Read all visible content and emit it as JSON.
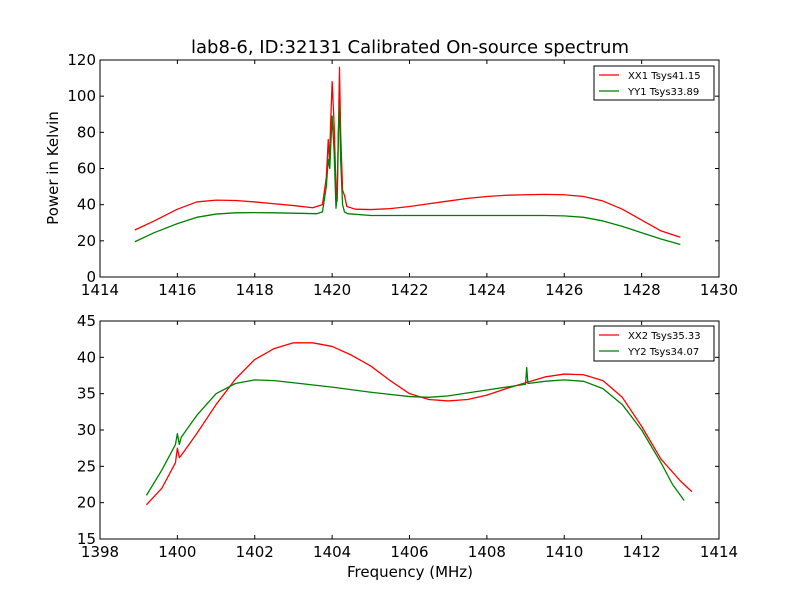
{
  "figure": {
    "title": "lab8-6, ID:32131 Calibrated On-source spectrum",
    "ylabel": "Power in Kelvin",
    "xlabel": "Frequency (MHz)"
  },
  "chart_data": [
    {
      "type": "line",
      "title": "lab8-6, ID:32131 Calibrated On-source spectrum",
      "xlabel": "",
      "ylabel": "Power in Kelvin",
      "xlim": [
        1414,
        1430
      ],
      "ylim": [
        0,
        120
      ],
      "xticks": [
        1414,
        1416,
        1418,
        1420,
        1422,
        1424,
        1426,
        1428,
        1430
      ],
      "yticks": [
        0,
        20,
        40,
        60,
        80,
        100,
        120
      ],
      "legend_position": "top-right",
      "grid": false,
      "series": [
        {
          "name": "XX1 Tsys41.15",
          "color": "#ff0000",
          "points": [
            [
              1414.9,
              26
            ],
            [
              1415.4,
              31
            ],
            [
              1416.0,
              37.5
            ],
            [
              1416.5,
              41.5
            ],
            [
              1417.0,
              42.5
            ],
            [
              1417.5,
              42.3
            ],
            [
              1418.0,
              41.5
            ],
            [
              1418.5,
              40.5
            ],
            [
              1419.0,
              39.5
            ],
            [
              1419.5,
              38.3
            ],
            [
              1419.75,
              40
            ],
            [
              1419.85,
              55
            ],
            [
              1419.9,
              76
            ],
            [
              1419.93,
              64
            ],
            [
              1419.97,
              90
            ],
            [
              1420.0,
              108
            ],
            [
              1420.05,
              85
            ],
            [
              1420.1,
              50
            ],
            [
              1420.13,
              42
            ],
            [
              1420.16,
              75
            ],
            [
              1420.19,
              116
            ],
            [
              1420.22,
              80
            ],
            [
              1420.27,
              48
            ],
            [
              1420.32,
              45
            ],
            [
              1420.38,
              39
            ],
            [
              1420.6,
              37.5
            ],
            [
              1421.0,
              37.3
            ],
            [
              1421.5,
              37.8
            ],
            [
              1422.0,
              39
            ],
            [
              1422.5,
              40.5
            ],
            [
              1423.0,
              42
            ],
            [
              1423.5,
              43.5
            ],
            [
              1424.0,
              44.5
            ],
            [
              1424.5,
              45.2
            ],
            [
              1425.0,
              45.5
            ],
            [
              1425.5,
              45.7
            ],
            [
              1426.0,
              45.5
            ],
            [
              1426.5,
              44.5
            ],
            [
              1427.0,
              42
            ],
            [
              1427.5,
              37.5
            ],
            [
              1428.0,
              31.5
            ],
            [
              1428.5,
              25.5
            ],
            [
              1429.0,
              22
            ]
          ]
        },
        {
          "name": "YY1 Tsys33.89",
          "color": "#008000",
          "points": [
            [
              1414.9,
              19.5
            ],
            [
              1415.4,
              24.5
            ],
            [
              1416.0,
              29.5
            ],
            [
              1416.5,
              33
            ],
            [
              1417.0,
              34.8
            ],
            [
              1417.5,
              35.5
            ],
            [
              1418.0,
              35.6
            ],
            [
              1418.5,
              35.5
            ],
            [
              1419.0,
              35.3
            ],
            [
              1419.6,
              35
            ],
            [
              1419.75,
              36
            ],
            [
              1419.85,
              50
            ],
            [
              1419.9,
              65
            ],
            [
              1419.94,
              60
            ],
            [
              1419.97,
              75
            ],
            [
              1420.0,
              89
            ],
            [
              1420.05,
              70
            ],
            [
              1420.1,
              38
            ],
            [
              1420.13,
              45
            ],
            [
              1420.16,
              80
            ],
            [
              1420.19,
              96
            ],
            [
              1420.22,
              65
            ],
            [
              1420.27,
              40
            ],
            [
              1420.32,
              36
            ],
            [
              1420.4,
              35
            ],
            [
              1421.0,
              34
            ],
            [
              1422.0,
              34
            ],
            [
              1423.0,
              34
            ],
            [
              1424.0,
              34
            ],
            [
              1425.0,
              34
            ],
            [
              1425.5,
              34
            ],
            [
              1426.0,
              33.8
            ],
            [
              1426.5,
              33
            ],
            [
              1427.0,
              31
            ],
            [
              1427.5,
              28
            ],
            [
              1428.0,
              24.5
            ],
            [
              1428.5,
              21
            ],
            [
              1429.0,
              18
            ]
          ]
        }
      ]
    },
    {
      "type": "line",
      "title": "",
      "xlabel": "Frequency (MHz)",
      "ylabel": "",
      "xlim": [
        1398,
        1414
      ],
      "ylim": [
        15,
        45
      ],
      "xticks": [
        1398,
        1400,
        1402,
        1404,
        1406,
        1408,
        1410,
        1412,
        1414
      ],
      "yticks": [
        15,
        20,
        25,
        30,
        35,
        40,
        45
      ],
      "legend_position": "top-right",
      "grid": false,
      "series": [
        {
          "name": "XX2 Tsys35.33",
          "color": "#ff0000",
          "points": [
            [
              1399.2,
              19.7
            ],
            [
              1399.6,
              22
            ],
            [
              1399.95,
              25.5
            ],
            [
              1400.0,
              27.5
            ],
            [
              1400.05,
              26.2
            ],
            [
              1400.1,
              26.5
            ],
            [
              1400.5,
              29.5
            ],
            [
              1401.0,
              33.5
            ],
            [
              1401.5,
              37
            ],
            [
              1402.0,
              39.7
            ],
            [
              1402.5,
              41.2
            ],
            [
              1403.0,
              42
            ],
            [
              1403.5,
              42
            ],
            [
              1404.0,
              41.5
            ],
            [
              1404.5,
              40.3
            ],
            [
              1405.0,
              38.8
            ],
            [
              1405.5,
              36.8
            ],
            [
              1406.0,
              35
            ],
            [
              1406.5,
              34.2
            ],
            [
              1407.0,
              34
            ],
            [
              1407.5,
              34.2
            ],
            [
              1408.0,
              34.8
            ],
            [
              1408.5,
              35.7
            ],
            [
              1409.0,
              36.5
            ],
            [
              1409.5,
              37.3
            ],
            [
              1410.0,
              37.7
            ],
            [
              1410.5,
              37.6
            ],
            [
              1411.0,
              36.8
            ],
            [
              1411.5,
              34.5
            ],
            [
              1412.0,
              30.5
            ],
            [
              1412.5,
              26
            ],
            [
              1413.0,
              23
            ],
            [
              1413.3,
              21.5
            ]
          ]
        },
        {
          "name": "YY2 Tsys34.07",
          "color": "#008000",
          "points": [
            [
              1399.2,
              21
            ],
            [
              1399.6,
              24.5
            ],
            [
              1399.95,
              28
            ],
            [
              1400.0,
              29.5
            ],
            [
              1400.05,
              28
            ],
            [
              1400.1,
              29
            ],
            [
              1400.5,
              32
            ],
            [
              1401.0,
              35
            ],
            [
              1401.5,
              36.4
            ],
            [
              1402.0,
              36.9
            ],
            [
              1402.5,
              36.8
            ],
            [
              1403.0,
              36.5
            ],
            [
              1404.0,
              35.9
            ],
            [
              1405.0,
              35.2
            ],
            [
              1406.0,
              34.6
            ],
            [
              1406.5,
              34.5
            ],
            [
              1407.0,
              34.7
            ],
            [
              1408.0,
              35.5
            ],
            [
              1409.0,
              36.3
            ],
            [
              1409.03,
              38.6
            ],
            [
              1409.06,
              36.4
            ],
            [
              1409.5,
              36.7
            ],
            [
              1410.0,
              36.9
            ],
            [
              1410.5,
              36.7
            ],
            [
              1411.0,
              35.7
            ],
            [
              1411.5,
              33.5
            ],
            [
              1412.0,
              30
            ],
            [
              1412.5,
              25.5
            ],
            [
              1412.8,
              22.5
            ],
            [
              1413.1,
              20.3
            ]
          ]
        }
      ]
    }
  ]
}
